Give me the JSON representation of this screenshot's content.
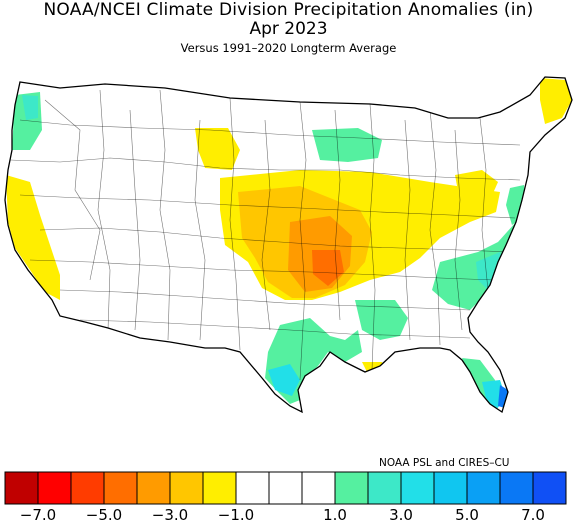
{
  "header": {
    "title": "NOAA/NCEI Climate Division Precipitation Anomalies (in)",
    "period": "Apr 2023",
    "subtitle": "Versus 1991–2020 Longterm Average"
  },
  "credit": "NOAA PSL and CIRES–CU",
  "legend": {
    "colors": [
      "#c00000",
      "#ff0000",
      "#ff3c00",
      "#ff6e00",
      "#ff9b00",
      "#ffc600",
      "#ffee00",
      "#ffffff",
      "#ffffff",
      "#ffffff",
      "#55f0a0",
      "#3de8c8",
      "#22dfe8",
      "#10c6f0",
      "#0aa0f5",
      "#0a78f5",
      "#1050f5"
    ],
    "tick_labels": [
      {
        "text": "−7.0",
        "boundary": 1
      },
      {
        "text": "−5.0",
        "boundary": 3
      },
      {
        "text": "−3.0",
        "boundary": 5
      },
      {
        "text": "−1.0",
        "boundary": 7
      },
      {
        "text": "1.0",
        "boundary": 10
      },
      {
        "text": "3.0",
        "boundary": 12
      },
      {
        "text": "5.0",
        "boundary": 14
      },
      {
        "text": "7.0",
        "boundary": 16
      }
    ]
  },
  "map_colors": {
    "dry_light": "#ffee00",
    "dry_mid": "#ffc600",
    "dry_strong": "#ff9b00",
    "dry_max": "#ff6e00",
    "wet_light": "#55f0a0",
    "wet_mid": "#3de8c8",
    "wet_strong": "#22dfe8",
    "wet_max": "#0a78f5",
    "border": "#000000",
    "land": "#ffffff"
  }
}
